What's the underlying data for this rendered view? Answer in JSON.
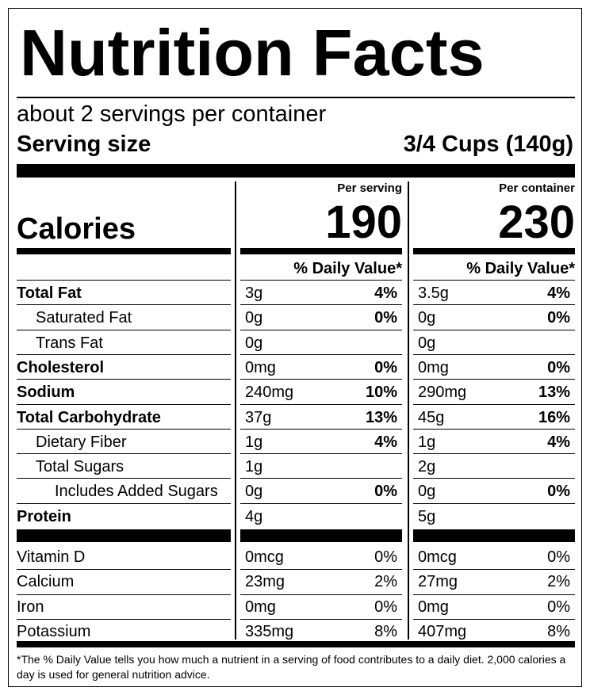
{
  "title": "Nutrition Facts",
  "servings_per_container": "about 2 servings per container",
  "serving_size_label": "Serving size",
  "serving_size_value": "3/4 Cups (140g)",
  "calories_label": "Calories",
  "columns": [
    {
      "heading": "Per serving",
      "calories": "190",
      "dv_heading": "% Daily Value*"
    },
    {
      "heading": "Per container",
      "calories": "230",
      "dv_heading": "% Daily Value*"
    }
  ],
  "nutrients": [
    {
      "name": "Total Fat",
      "bold": true,
      "indent": 0,
      "v1": "3g",
      "p1": "4%",
      "v2": "3.5g",
      "p2": "4%"
    },
    {
      "name": "Saturated Fat",
      "bold": false,
      "indent": 1,
      "v1": "0g",
      "p1": "0%",
      "v2": "0g",
      "p2": "0%"
    },
    {
      "name": "Trans Fat",
      "bold": false,
      "indent": 1,
      "v1": "0g",
      "p1": "",
      "v2": "0g",
      "p2": ""
    },
    {
      "name": "Cholesterol",
      "bold": true,
      "indent": 0,
      "v1": "0mg",
      "p1": "0%",
      "v2": "0mg",
      "p2": "0%"
    },
    {
      "name": "Sodium",
      "bold": true,
      "indent": 0,
      "v1": "240mg",
      "p1": "10%",
      "v2": "290mg",
      "p2": "13%"
    },
    {
      "name": "Total Carbohydrate",
      "bold": true,
      "indent": 0,
      "v1": "37g",
      "p1": "13%",
      "v2": "45g",
      "p2": "16%"
    },
    {
      "name": "Dietary Fiber",
      "bold": false,
      "indent": 1,
      "v1": "1g",
      "p1": "4%",
      "v2": "1g",
      "p2": "4%"
    },
    {
      "name": "Total Sugars",
      "bold": false,
      "indent": 1,
      "v1": "1g",
      "p1": "",
      "v2": "2g",
      "p2": ""
    },
    {
      "name": "Includes Added Sugars",
      "bold": false,
      "indent": 2,
      "v1": "0g",
      "p1": "0%",
      "v2": "0g",
      "p2": "0%"
    },
    {
      "name": "Protein",
      "bold": true,
      "indent": 0,
      "v1": "4g",
      "p1": "",
      "v2": "5g",
      "p2": ""
    }
  ],
  "vitamins": [
    {
      "name": "Vitamin D",
      "v1": "0mcg",
      "p1": "0%",
      "v2": "0mcg",
      "p2": "0%"
    },
    {
      "name": "Calcium",
      "v1": "23mg",
      "p1": "2%",
      "v2": "27mg",
      "p2": "2%"
    },
    {
      "name": "Iron",
      "v1": "0mg",
      "p1": "0%",
      "v2": "0mg",
      "p2": "0%"
    },
    {
      "name": "Potassium",
      "v1": "335mg",
      "p1": "8%",
      "v2": "407mg",
      "p2": "8%"
    }
  ],
  "footnote": "*The % Daily Value tells you how much a nutrient in a serving of food contributes to a daily diet. 2,000 calories a day is used for general nutrition advice."
}
